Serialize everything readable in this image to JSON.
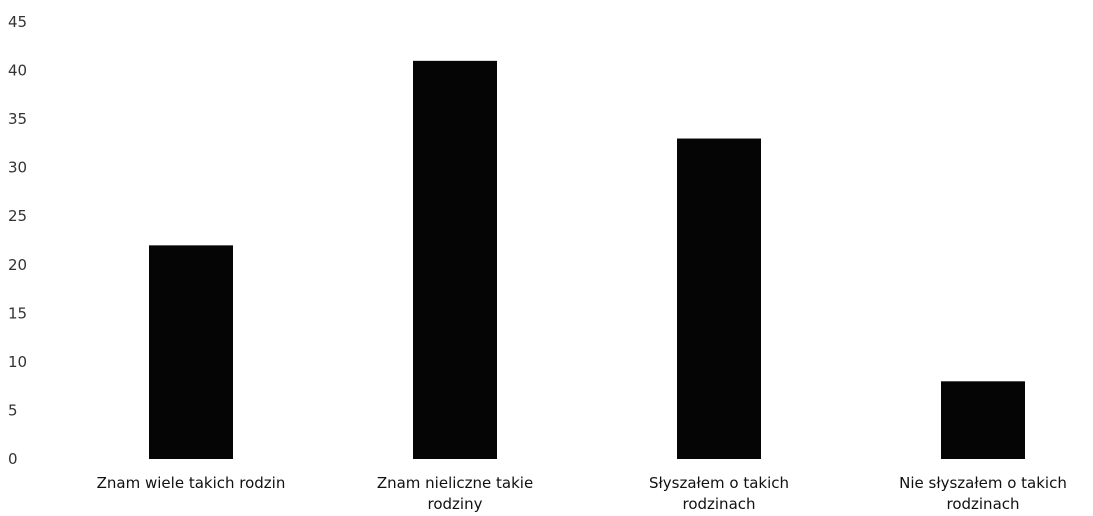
{
  "chart_data": {
    "type": "bar",
    "title": "",
    "xlabel": "",
    "ylabel": "",
    "categories": [
      [
        "Znam wiele takich rodzin"
      ],
      [
        "Znam nieliczne takie",
        "rodziny"
      ],
      [
        "Słyszałem o takich",
        "rodzinach"
      ],
      [
        "Nie słyszałem o takich",
        "rodzinach"
      ]
    ],
    "values": [
      22,
      41,
      33,
      8
    ],
    "ylim": [
      0,
      45
    ],
    "yticks": [
      0,
      5,
      10,
      15,
      20,
      25,
      30,
      35,
      40,
      45
    ],
    "grid": false,
    "legend": "none",
    "bar_color": "#050505"
  }
}
